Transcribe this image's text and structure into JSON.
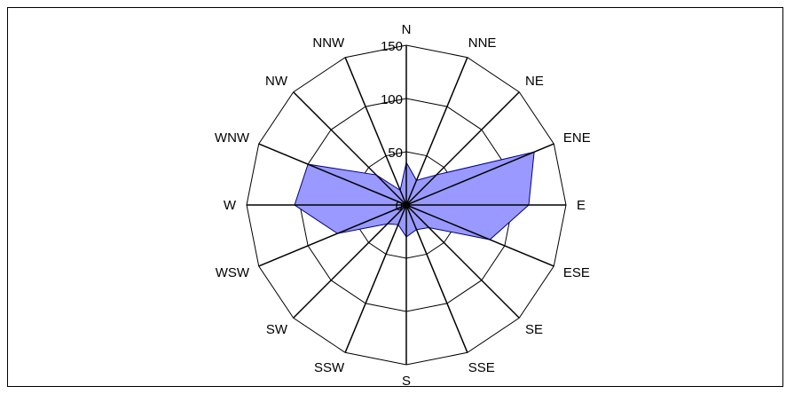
{
  "chart_data": {
    "type": "radar",
    "title": "",
    "categories": [
      "N",
      "NNE",
      "NE",
      "ENE",
      "E",
      "ESE",
      "SE",
      "SSE",
      "S",
      "SSW",
      "SW",
      "WSW",
      "W",
      "WNW",
      "NW",
      "NNW"
    ],
    "series": [
      {
        "values": [
          40,
          25,
          40,
          130,
          115,
          85,
          30,
          25,
          30,
          20,
          25,
          70,
          105,
          100,
          40,
          15
        ]
      }
    ],
    "rlim": [
      0,
      150
    ],
    "ticks": [
      0,
      50,
      100,
      150
    ],
    "tick_labels": [
      "0",
      "50",
      "100",
      "150"
    ],
    "grid": true,
    "colors": {
      "fill": "#9999ff",
      "stroke": "#000080",
      "grid": "#000000"
    }
  }
}
